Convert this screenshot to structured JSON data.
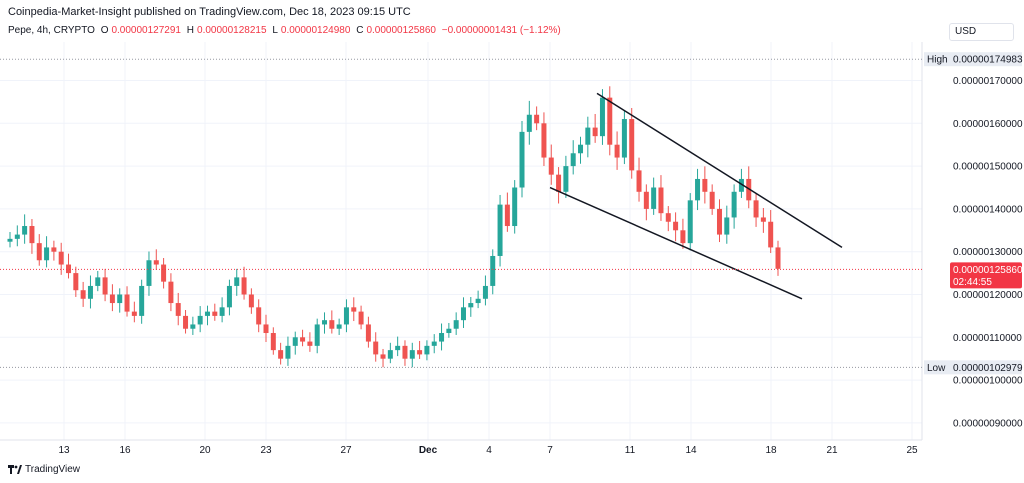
{
  "header": {
    "published": "Coinpedia-Market-Insight published on TradingView.com, Dec 18, 2023 09:15 UTC"
  },
  "legend": {
    "symbol": "Pepe, 4h, CRYPTO",
    "o_label": "O",
    "o": "0.00000127291",
    "h_label": "H",
    "h": "0.00000128215",
    "l_label": "L",
    "l": "0.00000124980",
    "c_label": "C",
    "c": "0.00000125860",
    "change": "−0.00000001431 (−1.12%)"
  },
  "currency": "USD",
  "footer": {
    "brand": "TradingView"
  },
  "colors": {
    "up": "#26a69a",
    "down": "#ef5350",
    "price_tag": "#f23645",
    "grid": "#f0f3fa"
  },
  "chart_data": {
    "type": "candlestick",
    "y_axis": {
      "ticks": [
        "0.00000170000",
        "0.00000160000",
        "0.00000150000",
        "0.00000140000",
        "0.00000130000",
        "0.00000120000",
        "0.00000110000",
        "0.00000100000",
        "0.00000090000"
      ],
      "tick_values": [
        1.7e-06,
        1.6e-06,
        1.5e-06,
        1.4e-06,
        1.3e-06,
        1.2e-06,
        1.1e-06,
        1e-06,
        9e-07
      ],
      "range": [
        8.6e-07,
        1.79e-06
      ]
    },
    "x_axis": {
      "ticks": [
        "13",
        "16",
        "20",
        "23",
        "27",
        "Dec",
        "4",
        "7",
        "11",
        "14",
        "18",
        "21",
        "25"
      ]
    },
    "high": {
      "label": "High",
      "value": "0.00000174983"
    },
    "low": {
      "label": "Low",
      "value": "0.00000102979"
    },
    "last_price": {
      "value": "0.00000125860",
      "countdown": "02:44:55"
    },
    "candles_close_approx": [
      1.33e-06,
      1.34e-06,
      1.36e-06,
      1.32e-06,
      1.28e-06,
      1.31e-06,
      1.3e-06,
      1.27e-06,
      1.25e-06,
      1.21e-06,
      1.19e-06,
      1.22e-06,
      1.24e-06,
      1.2e-06,
      1.18e-06,
      1.2e-06,
      1.16e-06,
      1.15e-06,
      1.22e-06,
      1.28e-06,
      1.27e-06,
      1.23e-06,
      1.18e-06,
      1.15e-06,
      1.12e-06,
      1.13e-06,
      1.15e-06,
      1.16e-06,
      1.15e-06,
      1.17e-06,
      1.22e-06,
      1.24e-06,
      1.2e-06,
      1.17e-06,
      1.13e-06,
      1.11e-06,
      1.07e-06,
      1.05e-06,
      1.08e-06,
      1.1e-06,
      1.09e-06,
      1.08e-06,
      1.13e-06,
      1.14e-06,
      1.12e-06,
      1.13e-06,
      1.17e-06,
      1.16e-06,
      1.13e-06,
      1.09e-06,
      1.06e-06,
      1.05e-06,
      1.07e-06,
      1.08e-06,
      1.05e-06,
      1.07e-06,
      1.06e-06,
      1.08e-06,
      1.09e-06,
      1.11e-06,
      1.12e-06,
      1.14e-06,
      1.17e-06,
      1.18e-06,
      1.19e-06,
      1.22e-06,
      1.29e-06,
      1.41e-06,
      1.36e-06,
      1.45e-06,
      1.58e-06,
      1.62e-06,
      1.6e-06,
      1.52e-06,
      1.48e-06,
      1.44e-06,
      1.5e-06,
      1.53e-06,
      1.55e-06,
      1.59e-06,
      1.57e-06,
      1.66e-06,
      1.55e-06,
      1.52e-06,
      1.61e-06,
      1.49e-06,
      1.44e-06,
      1.4e-06,
      1.45e-06,
      1.39e-06,
      1.37e-06,
      1.35e-06,
      1.32e-06,
      1.42e-06,
      1.47e-06,
      1.44e-06,
      1.4e-06,
      1.34e-06,
      1.38e-06,
      1.44e-06,
      1.47e-06,
      1.42e-06,
      1.38e-06,
      1.37e-06,
      1.31e-06,
      1.26e-06
    ],
    "trendlines": [
      {
        "name": "upper",
        "from": {
          "x": "Dec 9",
          "y": 1.67e-06
        },
        "to": {
          "x": "Dec 21",
          "y": 1.31e-06
        }
      },
      {
        "name": "lower",
        "from": {
          "x": "Dec 7",
          "y": 1.45e-06
        },
        "to": {
          "x": "Dec 19",
          "y": 1.19e-06
        }
      }
    ]
  }
}
